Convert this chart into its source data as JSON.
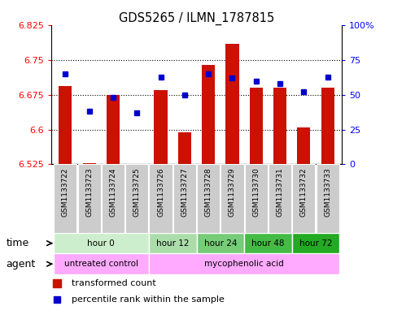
{
  "title": "GDS5265 / ILMN_1787815",
  "samples": [
    "GSM1133722",
    "GSM1133723",
    "GSM1133724",
    "GSM1133725",
    "GSM1133726",
    "GSM1133727",
    "GSM1133728",
    "GSM1133729",
    "GSM1133730",
    "GSM1133731",
    "GSM1133732",
    "GSM1133733"
  ],
  "red_values": [
    6.695,
    6.528,
    6.675,
    6.525,
    6.685,
    6.595,
    6.74,
    6.785,
    6.69,
    6.69,
    6.605,
    6.69
  ],
  "blue_pct": [
    65,
    38,
    48,
    37,
    63,
    50,
    65,
    62,
    60,
    58,
    52,
    63
  ],
  "ymin": 6.525,
  "ymax": 6.825,
  "yticks_left": [
    6.525,
    6.6,
    6.675,
    6.75,
    6.825
  ],
  "yticks_right": [
    0,
    25,
    50,
    75,
    100
  ],
  "hlines": [
    6.6,
    6.675,
    6.75
  ],
  "time_groups": [
    {
      "label": "hour 0",
      "start": 0,
      "end": 4,
      "color": "#cceecc"
    },
    {
      "label": "hour 12",
      "start": 4,
      "end": 6,
      "color": "#aaddaa"
    },
    {
      "label": "hour 24",
      "start": 6,
      "end": 8,
      "color": "#77cc77"
    },
    {
      "label": "hour 48",
      "start": 8,
      "end": 10,
      "color": "#44bb44"
    },
    {
      "label": "hour 72",
      "start": 10,
      "end": 12,
      "color": "#22aa22"
    }
  ],
  "agent_groups": [
    {
      "label": "untreated control",
      "start": 0,
      "end": 4,
      "color": "#ffaaff"
    },
    {
      "label": "mycophenolic acid",
      "start": 4,
      "end": 12,
      "color": "#ffaaff"
    }
  ],
  "bar_color": "#cc1100",
  "dot_color": "#0000cc",
  "sample_bg": "#cccccc",
  "legend_red": "transformed count",
  "legend_blue": "percentile rank within the sample"
}
